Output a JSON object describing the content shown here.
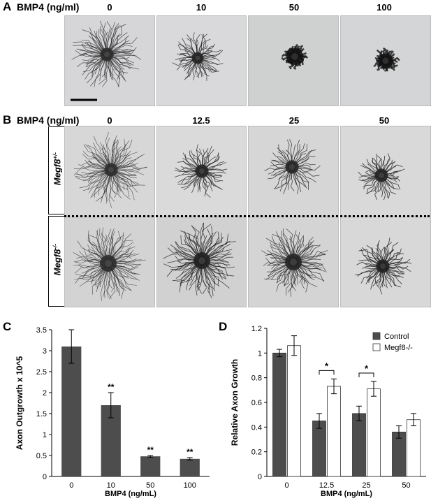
{
  "panel_a": {
    "letter": "A",
    "header": "BMP4 (ng/ml)",
    "concentrations": [
      "0",
      "10",
      "50",
      "100"
    ]
  },
  "panel_b": {
    "letter": "B",
    "header": "BMP4 (ng/ml)",
    "concentrations": [
      "0",
      "12.5",
      "25",
      "50"
    ],
    "rows": [
      {
        "gene": "Megf8",
        "sup": "+/-"
      },
      {
        "gene": "Megf8",
        "sup": "-/-"
      }
    ]
  },
  "chart_data": [
    {
      "panel": "C",
      "type": "bar",
      "categories": [
        "0",
        "10",
        "50",
        "100"
      ],
      "values": [
        3.1,
        1.7,
        0.48,
        0.42
      ],
      "errors": [
        0.4,
        0.3,
        0.02,
        0.03
      ],
      "significance": [
        "",
        "**",
        "**",
        "**"
      ],
      "xlabel": "BMP4 (ng/mL)",
      "ylabel": "Axon Outgrowth x 10^5",
      "ylim": [
        0,
        3.5
      ],
      "yticks": [
        "0",
        "0.5",
        "1",
        "1.5",
        "2",
        "2.5",
        "3",
        "3.5"
      ],
      "grid": false,
      "colors": {
        "bar": "#4d4d4d"
      }
    },
    {
      "panel": "D",
      "type": "bar",
      "categories": [
        "0",
        "12.5",
        "25",
        "50"
      ],
      "series": [
        {
          "name": "Control",
          "values": [
            1.0,
            0.45,
            0.51,
            0.36
          ],
          "errors": [
            0.03,
            0.06,
            0.06,
            0.05
          ]
        },
        {
          "name": "Megf8-/-",
          "values": [
            1.06,
            0.73,
            0.71,
            0.46
          ],
          "errors": [
            0.08,
            0.06,
            0.06,
            0.05
          ]
        }
      ],
      "significance": [
        "",
        "*",
        "*",
        ""
      ],
      "xlabel": "BMP4 (ng/mL)",
      "ylabel": "Relative Axon Growth",
      "ylim": [
        0,
        1.2
      ],
      "yticks": [
        "0",
        "0.2",
        "0.4",
        "0.6",
        "0.8",
        "1",
        "1.2"
      ],
      "legend_position": "top-right",
      "grid": false,
      "colors": {
        "control": "#4d4d4d",
        "megf8": "#ffffff"
      }
    }
  ]
}
